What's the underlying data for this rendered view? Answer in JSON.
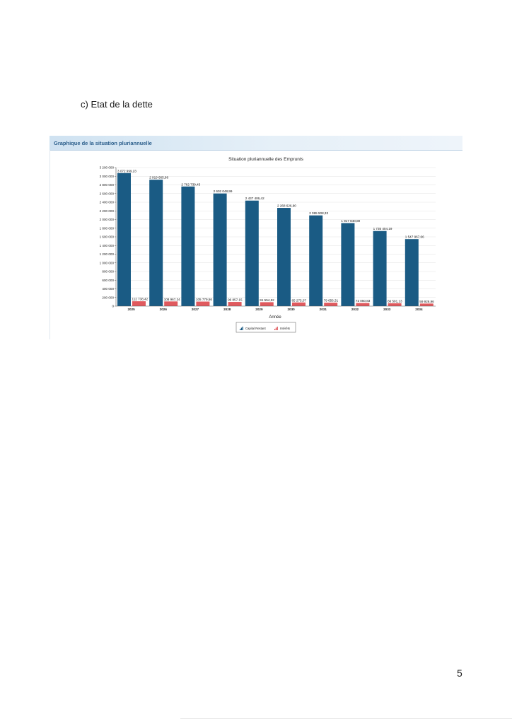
{
  "page": {
    "section_title": "c) Etat de la dette",
    "panel_title": "Graphique de la situation pluriannuelle",
    "page_number": "5"
  },
  "colors": {
    "capital": "#1a5b84",
    "interets": "#e05a5e",
    "panel_header": "#2c5f8c"
  },
  "chart_data": {
    "type": "bar",
    "title": "Situation pluriannuelle des Emprunts",
    "xlabel": "Année",
    "ylabel": "",
    "categories": [
      "2025",
      "2026",
      "2027",
      "2028",
      "2029",
      "2030",
      "2031",
      "2032",
      "2033",
      "2034"
    ],
    "ylim": [
      0,
      3200000
    ],
    "yticks": [
      0,
      200000,
      400000,
      600000,
      800000,
      1000000,
      1200000,
      1400000,
      1600000,
      1800000,
      2000000,
      2200000,
      2400000,
      2600000,
      2800000,
      3000000,
      3200000
    ],
    "ytick_labels": [
      "0",
      "200 000",
      "400 000",
      "600 000",
      "800 000",
      "1 000 000",
      "1 200 000",
      "1 400 000",
      "1 600 000",
      "1 800 000",
      "2 000 000",
      "2 200 000",
      "2 400 000",
      "2 600 000",
      "2 800 000",
      "3 000 000",
      "3 200 000"
    ],
    "grid": true,
    "legend_position": "bottom",
    "series": [
      {
        "name": "Capital Restant",
        "values": [
          3072999.23,
          2919665.68,
          2762739.43,
          2602048.99,
          2437406.42,
          2268626.9,
          2095508.33,
          1917840.8,
          1735404.19,
          1547967.66
        ],
        "labels": [
          "3 072 999,23",
          "2 919 665,68",
          "2 762 739,43",
          "2 602 048,99",
          "2 437 406,42",
          "2 268 626,90",
          "2 095 508,33",
          "1 917 840,80",
          "1 735 404,19",
          "1 547 967,66"
        ]
      },
      {
        "name": "Intérêts",
        "values": [
          112738.42,
          108967.24,
          105779.56,
          96857.15,
          91554.52,
          85275.07,
          79656.31,
          72050.83,
          66591.13,
          59926.96
        ],
        "labels": [
          "112 738,42",
          "108 967,24",
          "105 779,56",
          "96 857,15",
          "91 554,52",
          "85 275,07",
          "79 656,31",
          "72 050,83",
          "66 591,13",
          "59 926,96"
        ]
      }
    ]
  }
}
